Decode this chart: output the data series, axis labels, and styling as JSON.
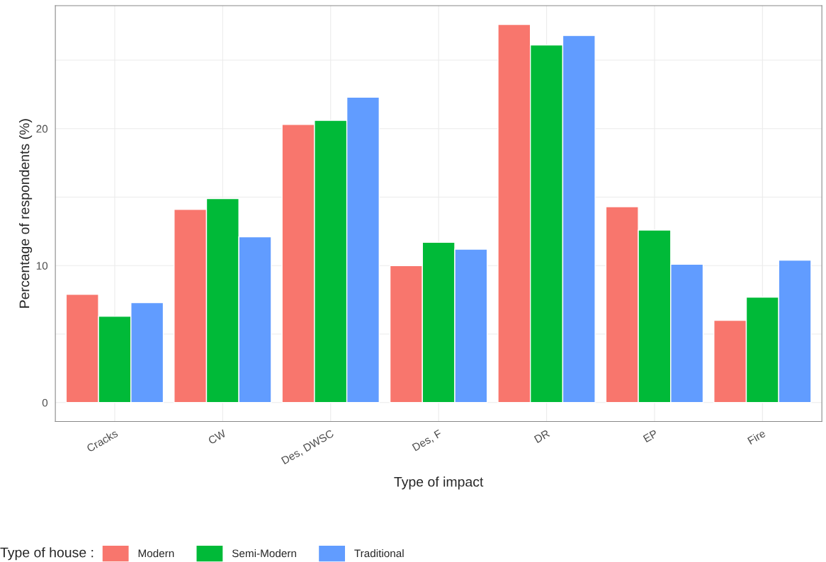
{
  "chart_data": {
    "type": "bar",
    "xlabel": "Type of impact",
    "ylabel": "Percentage of respondents (%)",
    "legend_title": "Type of house :",
    "categories": [
      "Cracks",
      "CW",
      "Des, DWSC",
      "Des, F",
      "DR",
      "EP",
      "Fire"
    ],
    "series": [
      {
        "name": "Modern",
        "color": "#f8766d",
        "values": [
          7.9,
          14.1,
          20.3,
          10.0,
          27.6,
          14.3,
          6.0
        ]
      },
      {
        "name": "Semi-Modern",
        "color": "#00ba38",
        "values": [
          6.3,
          14.9,
          20.6,
          11.7,
          26.1,
          12.6,
          7.7
        ]
      },
      {
        "name": "Traditional",
        "color": "#619cff",
        "values": [
          7.3,
          12.1,
          22.3,
          11.2,
          26.8,
          10.1,
          10.4
        ]
      }
    ],
    "ylim": [
      -1.38,
      28.98
    ],
    "yticks": [
      0,
      {
        "value": 5,
        "label": null
      },
      10,
      {
        "value": 15,
        "label": null
      },
      20,
      {
        "value": 25,
        "label": null
      }
    ],
    "grid": true,
    "legend": "bottom"
  }
}
